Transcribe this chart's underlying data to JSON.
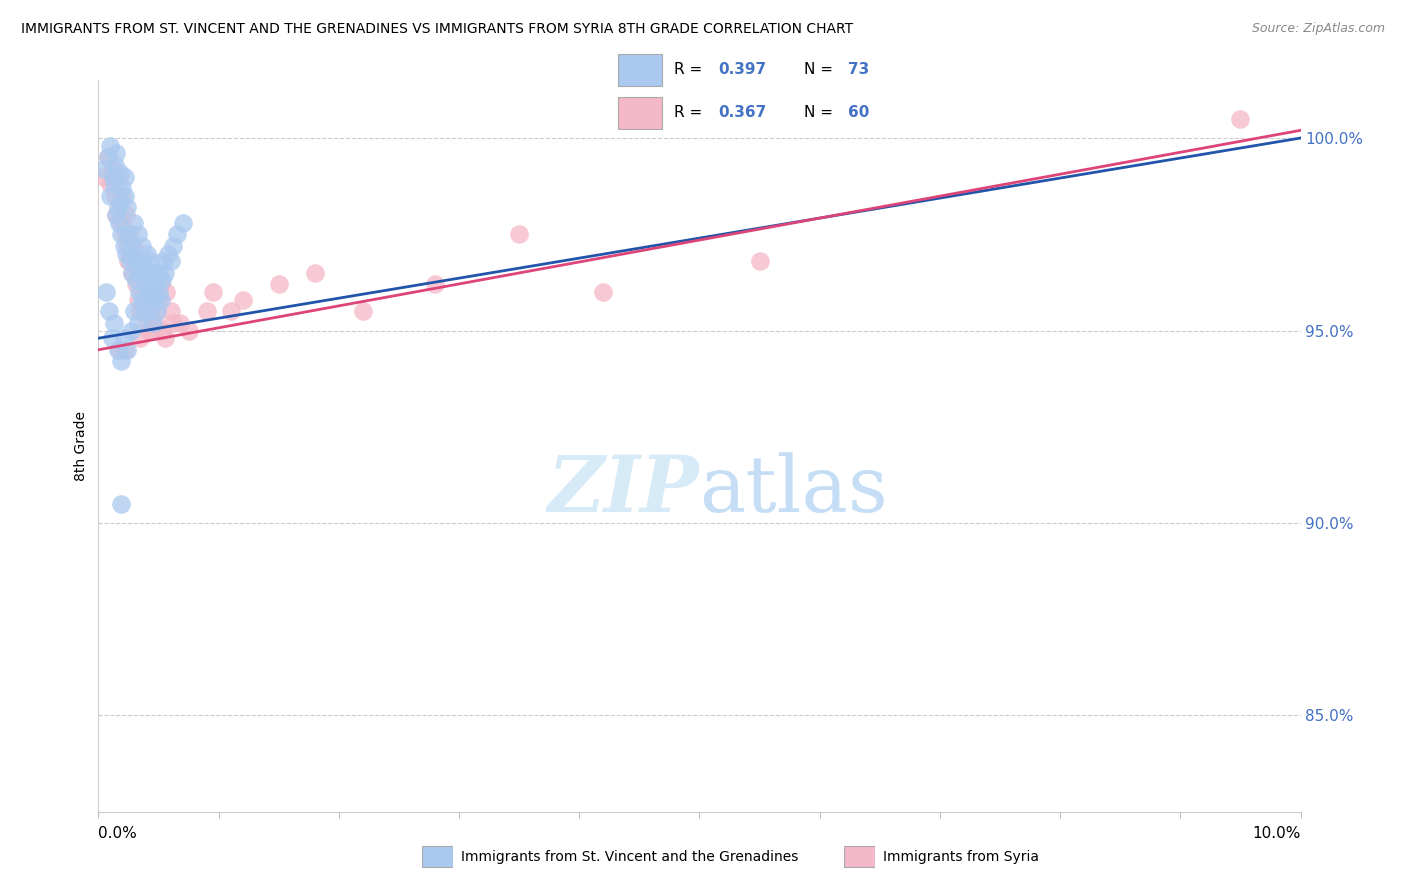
{
  "title": "IMMIGRANTS FROM ST. VINCENT AND THE GRENADINES VS IMMIGRANTS FROM SYRIA 8TH GRADE CORRELATION CHART",
  "source": "Source: ZipAtlas.com",
  "ylabel_label": "8th Grade",
  "xlim": [
    0.0,
    10.0
  ],
  "ylim": [
    82.5,
    101.5
  ],
  "yticks": [
    85.0,
    90.0,
    95.0,
    100.0
  ],
  "ytick_labels": [
    "85.0%",
    "90.0%",
    "95.0%",
    "100.0%"
  ],
  "color_blue": "#aac9ef",
  "color_pink": "#f4b8c8",
  "color_blue_line": "#2255aa",
  "color_pink_line": "#dd4477",
  "color_r_value": "#4472c4",
  "blue_trend_intercept": 94.8,
  "blue_trend_slope": 0.52,
  "pink_trend_intercept": 94.5,
  "pink_trend_slope": 0.57,
  "blue_scatter_x": [
    0.05,
    0.08,
    0.1,
    0.1,
    0.12,
    0.13,
    0.14,
    0.15,
    0.15,
    0.16,
    0.17,
    0.18,
    0.18,
    0.19,
    0.2,
    0.21,
    0.22,
    0.22,
    0.23,
    0.24,
    0.25,
    0.26,
    0.27,
    0.28,
    0.29,
    0.3,
    0.31,
    0.32,
    0.33,
    0.34,
    0.35,
    0.36,
    0.37,
    0.38,
    0.39,
    0.4,
    0.41,
    0.42,
    0.43,
    0.44,
    0.45,
    0.46,
    0.47,
    0.48,
    0.49,
    0.5,
    0.52,
    0.53,
    0.55,
    0.58,
    0.6,
    0.62,
    0.65,
    0.7,
    0.06,
    0.09,
    0.11,
    0.13,
    0.16,
    0.19,
    0.21,
    0.24,
    0.27,
    0.3,
    0.33,
    0.36,
    0.38,
    0.41,
    0.44,
    0.47,
    0.5,
    0.54,
    0.19
  ],
  "blue_scatter_y": [
    99.2,
    99.5,
    99.8,
    98.5,
    99.0,
    98.8,
    99.3,
    98.0,
    99.6,
    98.2,
    97.8,
    98.3,
    99.1,
    97.5,
    98.7,
    97.2,
    98.5,
    99.0,
    97.0,
    98.2,
    97.5,
    96.8,
    97.2,
    96.5,
    96.9,
    97.8,
    96.3,
    96.8,
    97.5,
    96.0,
    96.5,
    97.2,
    96.8,
    95.8,
    96.2,
    97.0,
    96.5,
    95.5,
    96.0,
    96.8,
    95.2,
    96.5,
    95.8,
    96.2,
    95.5,
    96.0,
    95.8,
    96.3,
    96.5,
    97.0,
    96.8,
    97.2,
    97.5,
    97.8,
    96.0,
    95.5,
    94.8,
    95.2,
    94.5,
    94.2,
    94.8,
    94.5,
    95.0,
    95.5,
    95.2,
    95.8,
    95.5,
    96.0,
    95.8,
    96.2,
    96.5,
    96.8,
    90.5
  ],
  "pink_scatter_x": [
    0.05,
    0.08,
    0.1,
    0.12,
    0.14,
    0.15,
    0.16,
    0.18,
    0.19,
    0.2,
    0.22,
    0.23,
    0.24,
    0.25,
    0.26,
    0.27,
    0.28,
    0.29,
    0.3,
    0.31,
    0.33,
    0.34,
    0.35,
    0.36,
    0.38,
    0.39,
    0.4,
    0.41,
    0.42,
    0.44,
    0.45,
    0.46,
    0.48,
    0.49,
    0.5,
    0.52,
    0.54,
    0.56,
    0.6,
    0.62,
    0.75,
    0.9,
    1.2,
    1.5,
    1.8,
    2.2,
    2.8,
    3.5,
    4.2,
    5.5,
    1.1,
    0.95,
    0.35,
    0.42,
    0.22,
    0.55,
    0.68,
    0.17,
    0.38,
    9.5
  ],
  "pink_scatter_y": [
    99.0,
    99.5,
    98.8,
    99.2,
    98.5,
    98.0,
    99.0,
    98.3,
    97.8,
    98.5,
    97.5,
    98.0,
    97.2,
    96.8,
    97.5,
    97.0,
    96.5,
    97.2,
    96.8,
    96.2,
    95.8,
    96.5,
    95.5,
    96.2,
    95.8,
    96.0,
    95.2,
    95.8,
    96.0,
    95.5,
    95.0,
    95.8,
    95.2,
    95.5,
    95.8,
    96.2,
    95.0,
    96.0,
    95.5,
    95.2,
    95.0,
    95.5,
    95.8,
    96.2,
    96.5,
    95.5,
    96.2,
    97.5,
    96.0,
    96.8,
    95.5,
    96.0,
    94.8,
    95.0,
    94.5,
    94.8,
    95.2,
    94.5,
    95.5,
    100.5
  ]
}
